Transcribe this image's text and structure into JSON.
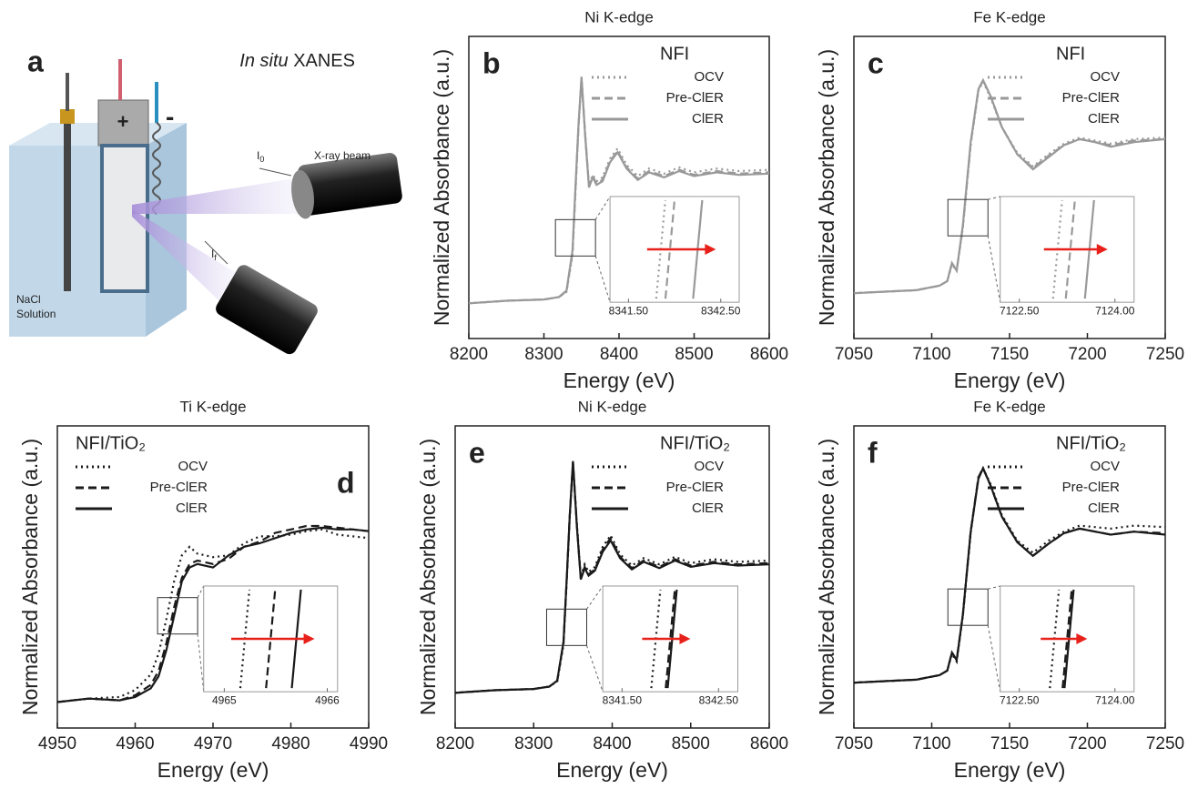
{
  "panel_a": {
    "label": "a",
    "title_italic": "In situ",
    "title_rest": "XANES",
    "beam": "X-ray beam",
    "i0": {
      "text": "I",
      "sub": "0"
    },
    "if": {
      "text": "I",
      "sub": "f"
    },
    "solution": [
      "NaCl",
      "Solution"
    ],
    "plus": "+",
    "minus": "-"
  },
  "chart_data": [
    {
      "type": "line",
      "panel_label": "b",
      "title": "Ni K-edge",
      "xlabel": "Energy (eV)",
      "ylabel": "Normalized Absorbance (a.u.)",
      "legend_title": "NFI",
      "legend": "upper right",
      "xlim": [
        8200,
        8600
      ],
      "xticks": [
        8200,
        8300,
        8400,
        8500,
        8600
      ],
      "ylim": [
        -0.3,
        2.1
      ],
      "x": [
        8200,
        8250,
        8300,
        8320,
        8330,
        8338,
        8342,
        8346,
        8350,
        8355,
        8360,
        8365,
        8370,
        8378,
        8388,
        8398,
        8410,
        8425,
        8440,
        8460,
        8480,
        8500,
        8530,
        8560,
        8600
      ],
      "series": [
        {
          "name": "OCV",
          "color": "#999999",
          "dash": "dotted",
          "values": [
            -0.02,
            0,
            0.01,
            0.03,
            0.07,
            0.36,
            0.85,
            1.38,
            1.76,
            1.32,
            0.92,
            1.0,
            0.95,
            0.98,
            1.13,
            1.21,
            1.08,
            0.99,
            1.05,
            1.01,
            1.06,
            1.02,
            1.05,
            1.03,
            1.04
          ]
        },
        {
          "name": "Pre-ClER",
          "color": "#999999",
          "dash": "dashed",
          "values": [
            -0.02,
            0,
            0.01,
            0.03,
            0.075,
            0.38,
            0.87,
            1.39,
            1.77,
            1.31,
            0.91,
            0.99,
            0.93,
            0.96,
            1.11,
            1.19,
            1.06,
            0.97,
            1.03,
            0.99,
            1.04,
            1.0,
            1.03,
            1.01,
            1.02
          ]
        },
        {
          "name": "ClER",
          "color": "#999999",
          "dash": "solid",
          "values": [
            -0.02,
            0,
            0.01,
            0.03,
            0.08,
            0.4,
            0.9,
            1.4,
            1.78,
            1.3,
            0.9,
            0.98,
            0.92,
            0.95,
            1.1,
            1.18,
            1.05,
            0.96,
            1.02,
            0.98,
            1.03,
            0.99,
            1.02,
            1.0,
            1.01
          ]
        }
      ],
      "inset": {
        "xlim": [
          8341.3,
          8342.7
        ],
        "xticks": [
          {
            "value": 8341.5,
            "label": "8341.50"
          },
          {
            "value": 8342.5,
            "label": "8342.50"
          }
        ],
        "edges": [
          8341.85,
          8341.95,
          8342.25
        ]
      }
    },
    {
      "type": "line",
      "panel_label": "c",
      "title": "Fe K-edge",
      "xlabel": "Energy (eV)",
      "ylabel": "Normalized Absorbance (a.u.)",
      "legend_title": "NFI",
      "legend": "upper right",
      "xlim": [
        7050,
        7250
      ],
      "xticks": [
        7050,
        7100,
        7150,
        7200,
        7250
      ],
      "ylim": [
        -0.3,
        1.7
      ],
      "x": [
        7050,
        7070,
        7090,
        7105,
        7110,
        7113,
        7116,
        7120,
        7125,
        7130,
        7133,
        7138,
        7145,
        7155,
        7165,
        7175,
        7185,
        7195,
        7205,
        7215,
        7230,
        7250
      ],
      "series": [
        {
          "name": "OCV",
          "color": "#999999",
          "dash": "dotted",
          "values": [
            0,
            0.01,
            0.02,
            0.05,
            0.08,
            0.19,
            0.15,
            0.43,
            0.98,
            1.34,
            1.4,
            1.29,
            1.1,
            0.93,
            0.84,
            0.92,
            0.99,
            1.03,
            1.01,
            0.99,
            1.02,
            1.03
          ]
        },
        {
          "name": "Pre-ClER",
          "color": "#999999",
          "dash": "dashed",
          "values": [
            0,
            0.01,
            0.02,
            0.05,
            0.08,
            0.2,
            0.15,
            0.44,
            0.99,
            1.35,
            1.41,
            1.3,
            1.1,
            0.92,
            0.83,
            0.91,
            0.98,
            1.02,
            1.0,
            0.98,
            1.01,
            1.02
          ]
        },
        {
          "name": "ClER",
          "color": "#999999",
          "dash": "solid",
          "values": [
            0,
            0.01,
            0.02,
            0.05,
            0.08,
            0.2,
            0.15,
            0.45,
            1.0,
            1.35,
            1.41,
            1.3,
            1.1,
            0.92,
            0.82,
            0.9,
            0.98,
            1.02,
            1.0,
            0.97,
            1.0,
            1.02
          ]
        }
      ],
      "inset": {
        "xlim": [
          7122.2,
          7124.3
        ],
        "xticks": [
          {
            "value": 7122.5,
            "label": "7122.50"
          },
          {
            "value": 7124,
            "label": "7124.00"
          }
        ],
        "edges": [
          7123.1,
          7123.3,
          7123.6
        ]
      }
    },
    {
      "type": "line",
      "panel_label": "d",
      "title": "Ti K-edge",
      "xlabel": "Energy (eV)",
      "ylabel": "Normalized Absorbance (a.u.)",
      "legend_title": "NFI/TiO₂",
      "legend": "upper left",
      "xlim": [
        4950,
        4990
      ],
      "xticks": [
        4950,
        4960,
        4970,
        4980,
        4990
      ],
      "ylim": [
        -0.15,
        1.6
      ],
      "x": [
        4950,
        4954,
        4958,
        4960,
        4962,
        4963,
        4964,
        4965,
        4966,
        4967,
        4968,
        4970,
        4972,
        4974,
        4976,
        4978,
        4980,
        4982,
        4984,
        4986,
        4988,
        4990
      ],
      "series": [
        {
          "name": "OCV",
          "color": "#1a1a1a",
          "dash": "dotted",
          "values": [
            0,
            0.02,
            0.03,
            0.07,
            0.16,
            0.28,
            0.48,
            0.7,
            0.85,
            0.9,
            0.86,
            0.84,
            0.85,
            0.92,
            0.96,
            0.96,
            0.97,
            0.99,
            1.0,
            0.97,
            0.96,
            0.95
          ]
        },
        {
          "name": "Pre-ClER",
          "color": "#1a1a1a",
          "dash": "dashed",
          "values": [
            0,
            0.02,
            0.01,
            0.04,
            0.1,
            0.18,
            0.34,
            0.55,
            0.72,
            0.8,
            0.82,
            0.8,
            0.83,
            0.9,
            0.93,
            0.98,
            1.0,
            1.02,
            1.02,
            1.01,
            1.0,
            0.99
          ]
        },
        {
          "name": "ClER",
          "color": "#1a1a1a",
          "dash": "solid",
          "values": [
            0,
            0.02,
            0.01,
            0.03,
            0.08,
            0.15,
            0.3,
            0.5,
            0.7,
            0.78,
            0.8,
            0.78,
            0.85,
            0.9,
            0.92,
            0.95,
            0.98,
            1.0,
            1.01,
            1.0,
            1.0,
            0.99
          ]
        }
      ],
      "inset": {
        "xlim": [
          4964.8,
          4966.1
        ],
        "xticks": [
          4965,
          4966
        ],
        "edges": [
          4965.2,
          4965.45,
          4965.7
        ]
      }
    },
    {
      "type": "line",
      "panel_label": "e",
      "title": "Ni K-edge",
      "xlabel": "Energy (eV)",
      "ylabel": "Normalized Absorbance (a.u.)",
      "legend_title": "NFI/TiO₂",
      "legend": "upper right",
      "xlim": [
        8200,
        8600
      ],
      "xticks": [
        8200,
        8300,
        8400,
        8500,
        8600
      ],
      "ylim": [
        -0.3,
        2.1
      ],
      "x": [
        8200,
        8250,
        8300,
        8320,
        8330,
        8338,
        8342,
        8346,
        8350,
        8355,
        8360,
        8365,
        8370,
        8378,
        8388,
        8398,
        8410,
        8425,
        8440,
        8460,
        8480,
        8500,
        8530,
        8560,
        8600
      ],
      "series": [
        {
          "name": "OCV",
          "color": "#1a1a1a",
          "dash": "dotted",
          "values": [
            -0.02,
            0,
            0.01,
            0.03,
            0.07,
            0.36,
            0.86,
            1.38,
            1.8,
            1.32,
            0.9,
            1.0,
            0.94,
            0.98,
            1.14,
            1.23,
            1.08,
            0.99,
            1.05,
            1.0,
            1.06,
            1.01,
            1.04,
            1.02,
            1.03
          ]
        },
        {
          "name": "Pre-ClER",
          "color": "#1a1a1a",
          "dash": "dashed",
          "values": [
            -0.02,
            0,
            0.01,
            0.03,
            0.075,
            0.38,
            0.88,
            1.39,
            1.81,
            1.31,
            0.89,
            0.98,
            0.92,
            0.96,
            1.12,
            1.21,
            1.06,
            0.97,
            1.03,
            0.98,
            1.04,
            0.99,
            1.02,
            1.0,
            1.01
          ]
        },
        {
          "name": "ClER",
          "color": "#1a1a1a",
          "dash": "solid",
          "values": [
            -0.02,
            0,
            0.01,
            0.03,
            0.076,
            0.385,
            0.88,
            1.39,
            1.82,
            1.3,
            0.88,
            0.97,
            0.91,
            0.95,
            1.1,
            1.19,
            1.05,
            0.96,
            1.02,
            0.97,
            1.03,
            0.98,
            1.01,
            0.99,
            1.0
          ]
        }
      ],
      "inset": {
        "xlim": [
          8341.3,
          8342.7
        ],
        "xticks": [
          {
            "value": 8341.5,
            "label": "8341.50"
          },
          {
            "value": 8342.5,
            "label": "8342.50"
          }
        ],
        "edges": [
          8341.85,
          8342.0,
          8342.02
        ]
      }
    },
    {
      "type": "line",
      "panel_label": "f",
      "title": "Fe K-edge",
      "xlabel": "Energy (eV)",
      "ylabel": "Normalized Absorbance (a.u.)",
      "legend_title": "NFI/TiO₂",
      "legend": "upper right",
      "xlim": [
        7050,
        7250
      ],
      "xticks": [
        7050,
        7100,
        7150,
        7200,
        7250
      ],
      "ylim": [
        -0.3,
        1.7
      ],
      "x": [
        7050,
        7070,
        7090,
        7105,
        7110,
        7113,
        7116,
        7120,
        7125,
        7130,
        7133,
        7138,
        7145,
        7155,
        7165,
        7175,
        7185,
        7195,
        7205,
        7215,
        7230,
        7250
      ],
      "series": [
        {
          "name": "OCV",
          "color": "#1a1a1a",
          "dash": "dotted",
          "values": [
            0,
            0.01,
            0.02,
            0.05,
            0.08,
            0.19,
            0.14,
            0.44,
            0.99,
            1.36,
            1.42,
            1.31,
            1.11,
            0.94,
            0.86,
            0.94,
            1.0,
            1.04,
            1.03,
            1.02,
            1.04,
            1.03
          ]
        },
        {
          "name": "Pre-ClER",
          "color": "#1a1a1a",
          "dash": "dashed",
          "values": [
            0,
            0.01,
            0.02,
            0.05,
            0.08,
            0.2,
            0.15,
            0.45,
            1.0,
            1.36,
            1.42,
            1.3,
            1.1,
            0.93,
            0.84,
            0.92,
            0.99,
            1.02,
            1.0,
            0.98,
            1.0,
            0.99
          ]
        },
        {
          "name": "ClER",
          "color": "#1a1a1a",
          "dash": "solid",
          "values": [
            0,
            0.01,
            0.02,
            0.05,
            0.08,
            0.2,
            0.15,
            0.45,
            1.0,
            1.35,
            1.42,
            1.3,
            1.1,
            0.93,
            0.84,
            0.92,
            0.99,
            1.02,
            1.0,
            0.98,
            1.0,
            0.98
          ]
        }
      ],
      "inset": {
        "xlim": [
          7122.2,
          7124.3
        ],
        "xticks": [
          {
            "value": 7122.5,
            "label": "7122.50"
          },
          {
            "value": 7124,
            "label": "7124.00"
          }
        ],
        "edges": [
          7123.05,
          7123.25,
          7123.28
        ]
      }
    }
  ]
}
